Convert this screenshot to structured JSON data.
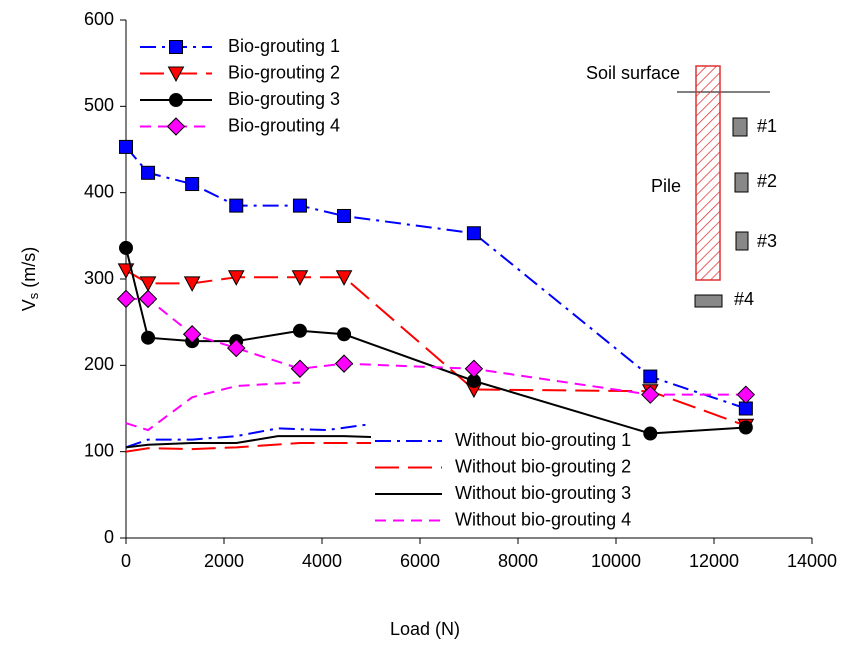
{
  "chart_data": {
    "type": "line",
    "x_label": "Load (N)",
    "y_label": [
      "V",
      "s",
      " (m/s)"
    ],
    "xlim": [
      0,
      14000
    ],
    "xticks": [
      0,
      2000,
      4000,
      6000,
      8000,
      10000,
      12000,
      14000
    ],
    "ylim": [
      0,
      600
    ],
    "yticks": [
      0,
      100,
      200,
      300,
      400,
      500,
      600
    ],
    "series": [
      {
        "name": "Bio-grouting 1",
        "color": "#0000ff",
        "marker": "square",
        "dash": "dashdot",
        "x": [
          0,
          450,
          1350,
          2250,
          3550,
          4450,
          7100,
          10700,
          12650
        ],
        "values": [
          453,
          423,
          410,
          385,
          385,
          373,
          353,
          187,
          150
        ]
      },
      {
        "name": "Bio-grouting 2",
        "color": "#ff0000",
        "marker": "triangle-down",
        "dash": "long",
        "x": [
          0,
          450,
          1350,
          2250,
          3550,
          4450,
          7100,
          10700,
          12650
        ],
        "values": [
          310,
          295,
          295,
          302,
          302,
          302,
          172,
          170,
          130
        ]
      },
      {
        "name": "Bio-grouting 3",
        "color": "#000000",
        "marker": "circle",
        "dash": "solid",
        "x": [
          0,
          450,
          1350,
          2250,
          3550,
          4450,
          7100,
          10700,
          12650
        ],
        "values": [
          336,
          232,
          228,
          228,
          240,
          236,
          182,
          121,
          128
        ]
      },
      {
        "name": "Bio-grouting 4",
        "color": "#ff00ff",
        "marker": "diamond",
        "dash": "short",
        "x": [
          0,
          450,
          1350,
          2250,
          3550,
          4450,
          7100,
          10700,
          12650
        ],
        "values": [
          277,
          277,
          236,
          220,
          196,
          202,
          196,
          166,
          166
        ]
      },
      {
        "name": "Without bio-grouting 1",
        "color": "#0000ff",
        "marker": null,
        "dash": "dashdot",
        "x": [
          0,
          450,
          1350,
          2250,
          3100,
          3550,
          4100,
          5000
        ],
        "values": [
          105,
          114,
          114,
          118,
          127,
          126,
          125,
          132
        ]
      },
      {
        "name": "Without bio-grouting 2",
        "color": "#ff0000",
        "marker": null,
        "dash": "long",
        "x": [
          0,
          450,
          1350,
          2250,
          3550,
          4450,
          5000
        ],
        "values": [
          100,
          104,
          103,
          105,
          110,
          110,
          110
        ]
      },
      {
        "name": "Without bio-grouting 3",
        "color": "#000000",
        "marker": null,
        "dash": "solid",
        "x": [
          0,
          450,
          1350,
          2250,
          3100,
          4450,
          5000
        ],
        "values": [
          105,
          108,
          110,
          110,
          118,
          118,
          117
        ]
      },
      {
        "name": "Without bio-grouting 4",
        "color": "#ff00ff",
        "marker": null,
        "dash": "short",
        "x": [
          0,
          450,
          1350,
          2250,
          3100,
          3550
        ],
        "values": [
          133,
          125,
          163,
          176,
          179,
          180
        ]
      }
    ],
    "annotations": {
      "soil": "Soil surface",
      "pile": "Pile",
      "s1": "#1",
      "s2": "#2",
      "s3": "#3",
      "s4": "#4"
    }
  }
}
